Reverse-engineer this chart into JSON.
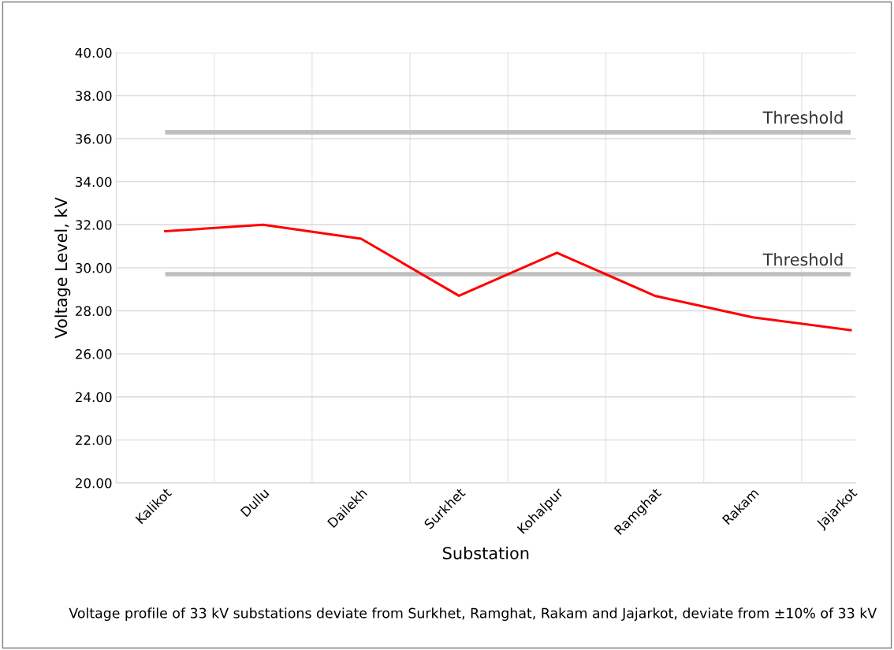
{
  "chart_data": {
    "type": "line",
    "xlabel": "Substation",
    "ylabel": "Voltage Level, kV",
    "categories": [
      "Kalikot",
      "Dullu",
      "Dailekh",
      "Surkhet",
      "Kohalpur",
      "Ramghat",
      "Rakam",
      "Jajarkot"
    ],
    "series": [
      {
        "color": "#ff0000",
        "values": [
          31.7,
          32.0,
          31.35,
          28.7,
          30.7,
          28.7,
          27.7,
          27.1
        ]
      }
    ],
    "ylim": [
      20,
      40
    ],
    "yticks": [
      {
        "value": 20,
        "label": "20.00"
      },
      {
        "value": 22,
        "label": "22.00"
      },
      {
        "value": 24,
        "label": "24.00"
      },
      {
        "value": 26,
        "label": "26.00"
      },
      {
        "value": 28,
        "label": "28.00"
      },
      {
        "value": 30,
        "label": "30.00"
      },
      {
        "value": 32,
        "label": "32.00"
      },
      {
        "value": 34,
        "label": "34.00"
      },
      {
        "value": 36,
        "label": "36.00"
      },
      {
        "value": 38,
        "label": "38.00"
      },
      {
        "value": 40,
        "label": "40.00"
      }
    ],
    "ref_lines": [
      {
        "axis": "y",
        "value": 36.3,
        "label": "Threshold",
        "color": "#bfbfbf"
      },
      {
        "axis": "y",
        "value": 29.7,
        "label": "Threshold",
        "color": "#bfbfbf"
      }
    ],
    "grid": true,
    "marker": "none",
    "line_style": "solid",
    "annotations": [
      "Voltage profile of 33 kV substations deviate from Surkhet, Ramghat, Rakam and Jajarkot, deviate from ±10% of 33 kV"
    ]
  }
}
